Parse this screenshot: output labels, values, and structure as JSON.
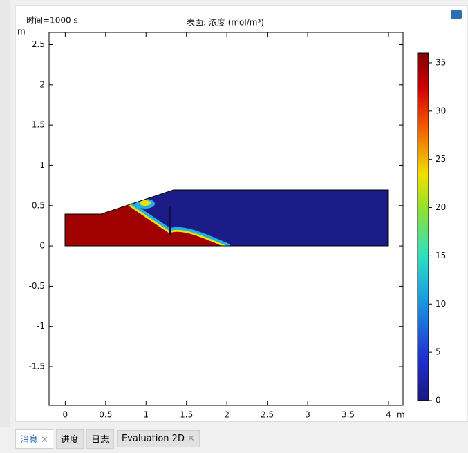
{
  "header": {
    "time_label": "时间=1000 s",
    "title": "表面: 浓度 (mol/m³)"
  },
  "plot": {
    "x_unit": "m",
    "y_unit": "m",
    "xlim": [
      -0.2,
      4.18
    ],
    "ylim": [
      -1.98,
      2.65
    ],
    "xticks": [
      0,
      0.5,
      1,
      1.5,
      2,
      2.5,
      3,
      3.5,
      4
    ],
    "yticks": [
      -1.5,
      -1,
      -0.5,
      0,
      0.5,
      1,
      1.5,
      2,
      2.5
    ],
    "colorbar": {
      "clim": [
        0,
        36
      ],
      "ticks": [
        0,
        5,
        10,
        15,
        20,
        25,
        30,
        35
      ]
    }
  },
  "tabs": [
    "消息",
    "进度",
    "日志",
    "Evaluation 2D"
  ]
}
